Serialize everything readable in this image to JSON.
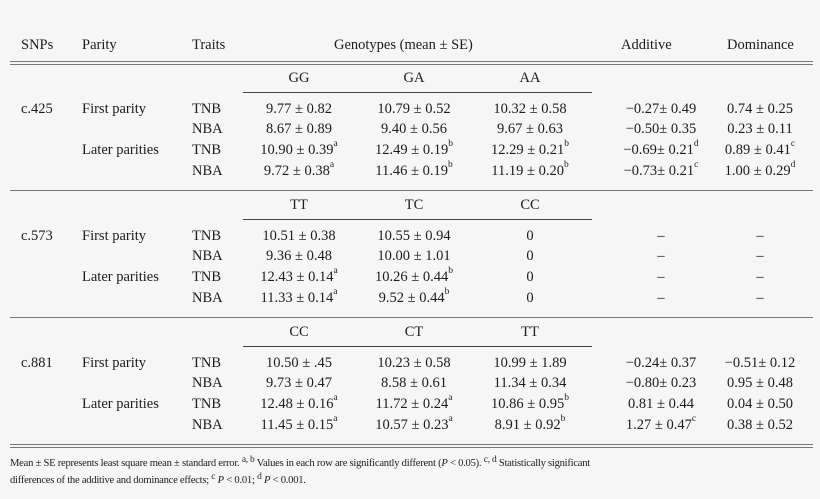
{
  "header": {
    "snps": "SNPs",
    "parity": "Parity",
    "traits": "Traits",
    "genotypes": "Genotypes (mean ± SE)",
    "additive": "Additive",
    "dominance": "Dominance"
  },
  "sections": [
    {
      "snp": "c.425",
      "genotypes": [
        "GG",
        "GA",
        "AA"
      ],
      "rows": [
        {
          "parity": "First parity",
          "trait": "TNB",
          "g1": "9.77 ± 0.82",
          "g1s": "",
          "g2": "10.79 ± 0.52",
          "g2s": "",
          "g3": "10.32 ± 0.58",
          "g3s": "",
          "add": "−0.27± 0.49",
          "adds": "",
          "dom": "0.74 ± 0.25",
          "doms": ""
        },
        {
          "parity": "",
          "trait": "NBA",
          "g1": "8.67 ± 0.89",
          "g1s": "",
          "g2": "9.40 ± 0.56",
          "g2s": "",
          "g3": "9.67 ± 0.63",
          "g3s": "",
          "add": "−0.50± 0.35",
          "adds": "",
          "dom": "0.23 ± 0.11",
          "doms": ""
        },
        {
          "parity": "Later parities",
          "trait": "TNB",
          "g1": "10.90 ± 0.39",
          "g1s": "a",
          "g2": "12.49 ± 0.19",
          "g2s": "b",
          "g3": "12.29 ± 0.21",
          "g3s": "b",
          "add": "−0.69± 0.21",
          "adds": "d",
          "dom": "0.89 ± 0.41",
          "doms": "c"
        },
        {
          "parity": "",
          "trait": "NBA",
          "g1": "9.72 ± 0.38",
          "g1s": "a",
          "g2": "11.46 ± 0.19",
          "g2s": "b",
          "g3": "11.19 ± 0.20",
          "g3s": "b",
          "add": "−0.73± 0.21",
          "adds": "c",
          "dom": "1.00 ± 0.29",
          "doms": "d"
        }
      ]
    },
    {
      "snp": "c.573",
      "genotypes": [
        "TT",
        "TC",
        "CC"
      ],
      "rows": [
        {
          "parity": "First parity",
          "trait": "TNB",
          "g1": "10.51 ± 0.38",
          "g1s": "",
          "g2": "10.55 ± 0.94",
          "g2s": "",
          "g3": "0",
          "g3s": "",
          "add": "–",
          "adds": "",
          "dom": "–",
          "doms": ""
        },
        {
          "parity": "",
          "trait": "NBA",
          "g1": "9.36 ± 0.48",
          "g1s": "",
          "g2": "10.00 ± 1.01",
          "g2s": "",
          "g3": "0",
          "g3s": "",
          "add": "–",
          "adds": "",
          "dom": "–",
          "doms": ""
        },
        {
          "parity": "Later parities",
          "trait": "TNB",
          "g1": "12.43 ± 0.14",
          "g1s": "a",
          "g2": "10.26 ± 0.44",
          "g2s": "b",
          "g3": "0",
          "g3s": "",
          "add": "–",
          "adds": "",
          "dom": "–",
          "doms": ""
        },
        {
          "parity": "",
          "trait": "NBA",
          "g1": "11.33 ± 0.14",
          "g1s": "a",
          "g2": "9.52 ± 0.44",
          "g2s": "b",
          "g3": "0",
          "g3s": "",
          "add": "–",
          "adds": "",
          "dom": "–",
          "doms": ""
        }
      ]
    },
    {
      "snp": "c.881",
      "genotypes": [
        "CC",
        "CT",
        "TT"
      ],
      "rows": [
        {
          "parity": "First parity",
          "trait": "TNB",
          "g1": "10.50 ± .45",
          "g1s": "",
          "g2": "10.23 ± 0.58",
          "g2s": "",
          "g3": "10.99 ± 1.89",
          "g3s": "",
          "add": "−0.24± 0.37",
          "adds": "",
          "dom": "−0.51± 0.12",
          "doms": ""
        },
        {
          "parity": "",
          "trait": "NBA",
          "g1": "9.73 ± 0.47",
          "g1s": "",
          "g2": "8.58 ± 0.61",
          "g2s": "",
          "g3": "11.34 ± 0.34",
          "g3s": "",
          "add": "−0.80± 0.23",
          "adds": "",
          "dom": "0.95 ± 0.48",
          "doms": ""
        },
        {
          "parity": "Later parities",
          "trait": "TNB",
          "g1": "12.48 ± 0.16",
          "g1s": "a",
          "g2": "11.72 ± 0.24",
          "g2s": "a",
          "g3": "10.86 ± 0.95",
          "g3s": "b",
          "add": "0.81 ± 0.44",
          "adds": "",
          "dom": "0.04 ± 0.50",
          "doms": ""
        },
        {
          "parity": "",
          "trait": "NBA",
          "g1": "11.45 ± 0.15",
          "g1s": "a",
          "g2": "10.57 ± 0.23",
          "g2s": "a",
          "g3": "8.91 ± 0.92",
          "g3s": "b",
          "add": "1.27 ± 0.47",
          "adds": "c",
          "dom": "0.38 ± 0.52",
          "doms": ""
        }
      ]
    }
  ],
  "footnote": {
    "l1_a": "Mean ± SE represents least square mean ± standard error. ",
    "l1_sup_ab": "a, b",
    "l1_b": " Values in each row are significantly different (",
    "l1_p": "P",
    "l1_c": " < 0.05). ",
    "l1_sup_cd": "c, d",
    "l1_d": " Statistically significant",
    "l2_a": "differences of the additive and dominance effects; ",
    "l2_sup_c": "c",
    "l2_p1": "P",
    "l2_b": " < 0.01; ",
    "l2_sup_d": "d",
    "l2_p2": "P",
    "l2_c": " < 0.001."
  }
}
